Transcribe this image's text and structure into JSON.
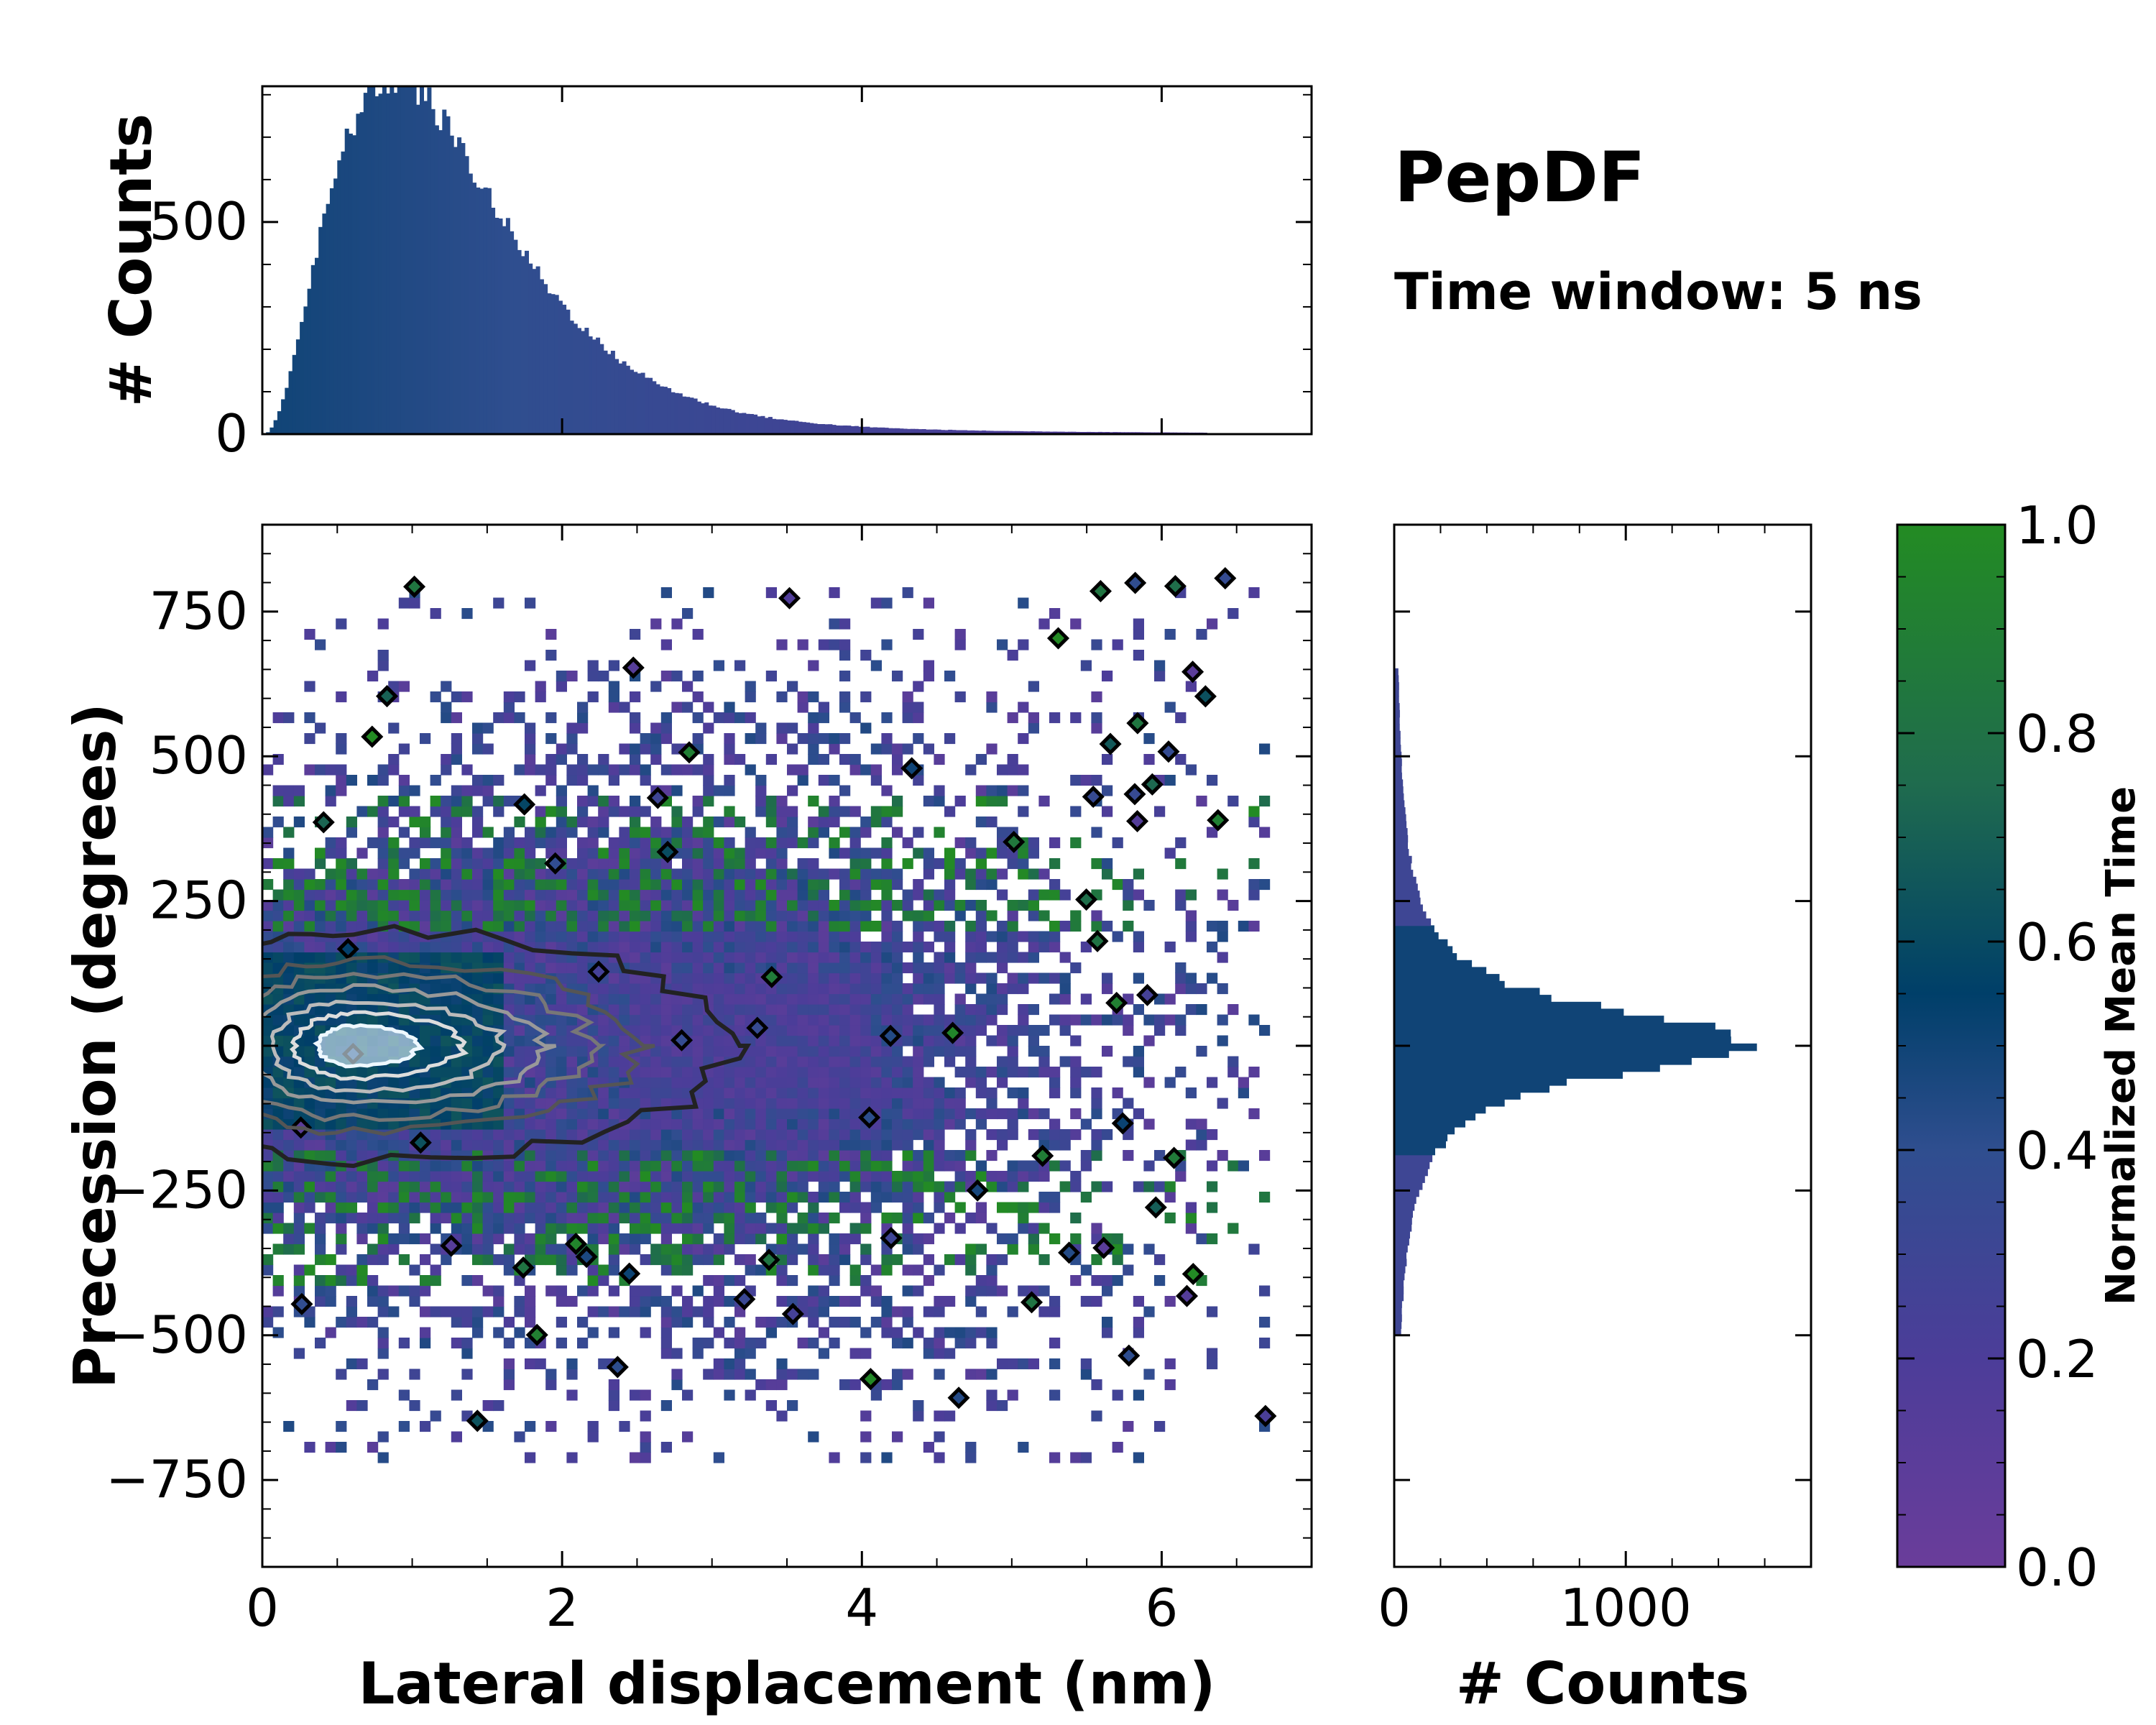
{
  "chart_data": {
    "type": "heatmap",
    "title": "PepDF",
    "subtitle": "Time window: 5 ns",
    "xlabel": "Lateral displacement (nm)",
    "ylabel": "Precession (degrees)",
    "xlim": [
      0,
      7
    ],
    "ylim": [
      -900,
      900
    ],
    "x_ticks": [
      "0",
      "2",
      "4",
      "6"
    ],
    "y_ticks": [
      "−750",
      "−500",
      "−250",
      "0",
      "250",
      "500",
      "750"
    ],
    "top_histogram": {
      "ylabel": "# Counts",
      "y_ticks": [
        "0",
        "500"
      ],
      "ylim": [
        0,
        820
      ],
      "peak_x": 0.9,
      "peak_count": 800,
      "x_range": [
        0,
        6.3
      ]
    },
    "right_histogram": {
      "xlabel": "# Counts",
      "x_ticks": [
        "0",
        "1000"
      ],
      "xlim": [
        0,
        1800
      ],
      "peak_precession": 0,
      "peak_count": 1550,
      "y_range": [
        -500,
        650
      ]
    },
    "colorbar": {
      "label": "Normalized Mean Time",
      "range": [
        0.0,
        1.0
      ],
      "tick_labels": [
        "0.0",
        "0.2",
        "0.4",
        "0.6",
        "0.8",
        "1.0"
      ],
      "colors": [
        "#6a3d9a",
        "#4c3d99",
        "#2f4e8f",
        "#003f69",
        "#1f6b4e",
        "#238b23"
      ]
    },
    "density_center": [
      0.8,
      0
    ]
  }
}
